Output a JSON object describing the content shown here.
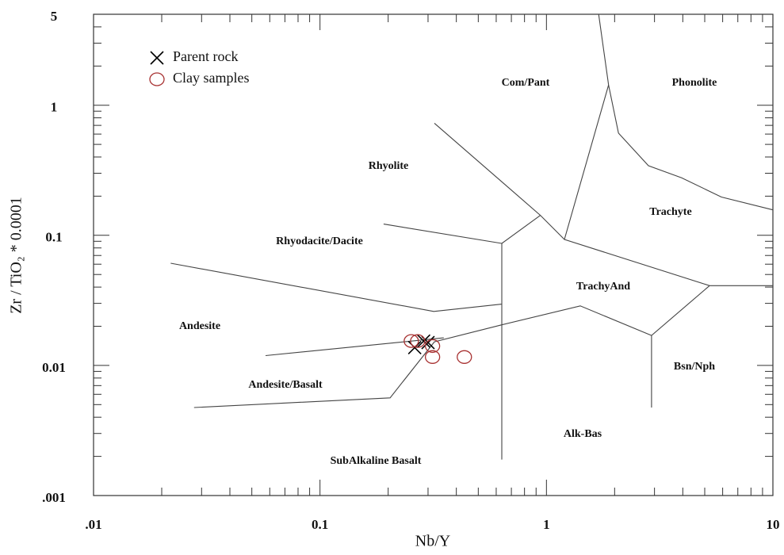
{
  "chart_data": {
    "type": "scatter",
    "x_label": "Nb/Y",
    "y_label": "Zr / TiO₂ * 0.0001",
    "log_x": true,
    "log_y": true,
    "xlim": [
      0.01,
      10
    ],
    "ylim": [
      0.001,
      5
    ],
    "xticks": [
      {
        "value": 0.01,
        "label": ".01"
      },
      0.1,
      1,
      10
    ],
    "yticks": [
      {
        "value": 0.001,
        "label": ".001"
      },
      0.01,
      0.1,
      1,
      5
    ],
    "legend": "top-left",
    "series": [
      {
        "name": "Parent rock",
        "marker": "x",
        "color": "#000000",
        "x": [
          0.262,
          0.287,
          0.3
        ],
        "y": [
          0.0137,
          0.0154,
          0.015
        ]
      },
      {
        "name": "Clay samples",
        "marker": "circle",
        "color": "#a83232",
        "x": [
          0.253,
          0.27,
          0.314,
          0.314,
          0.434
        ],
        "y": [
          0.0154,
          0.0154,
          0.0141,
          0.0116,
          0.0116
        ]
      }
    ],
    "boundaries": [
      {
        "x": [
          1.7,
          1.88,
          2.08,
          2.82,
          3.95,
          5.92,
          10
        ],
        "y": [
          5,
          1.43,
          0.61,
          0.343,
          0.277,
          0.197,
          0.157
        ]
      },
      {
        "x": [
          1.88,
          1.2,
          5.25,
          10
        ],
        "y": [
          1.43,
          0.093,
          0.041,
          0.041
        ]
      },
      {
        "x": [
          5.25,
          2.91,
          2.91
        ],
        "y": [
          0.041,
          0.017,
          0.00475
        ]
      },
      {
        "x": [
          0.32,
          0.94,
          1.2
        ],
        "y": [
          0.727,
          0.1425,
          0.093
        ]
      },
      {
        "x": [
          0.635,
          0.94
        ],
        "y": [
          0.0867,
          0.1425
        ]
      },
      {
        "x": [
          0.635,
          0.635
        ],
        "y": [
          0.0867,
          0.00189
        ]
      },
      {
        "x": [
          0.191,
          0.635
        ],
        "y": [
          0.122,
          0.0867
        ]
      },
      {
        "x": [
          0.0219,
          0.318,
          0.635
        ],
        "y": [
          0.061,
          0.026,
          0.0296
        ]
      },
      {
        "x": [
          0.0575,
          0.352
        ],
        "y": [
          0.0119,
          0.0163
        ]
      },
      {
        "x": [
          0.0278,
          0.204,
          0.32,
          0.635,
          1.41,
          2.91
        ],
        "y": [
          0.00475,
          0.00563,
          0.0152,
          0.0205,
          0.0287,
          0.017
        ]
      }
    ],
    "fields": [
      "Com/Pant",
      "Phonolite",
      "Rhyolite",
      "Trachyte",
      "Rhyodacite/Dacite",
      "TrachyAnd",
      "Andesite",
      "Bsn/Nph",
      "Andesite/Basalt",
      "Alk-Bas",
      "SubAlkaline Basalt"
    ]
  }
}
